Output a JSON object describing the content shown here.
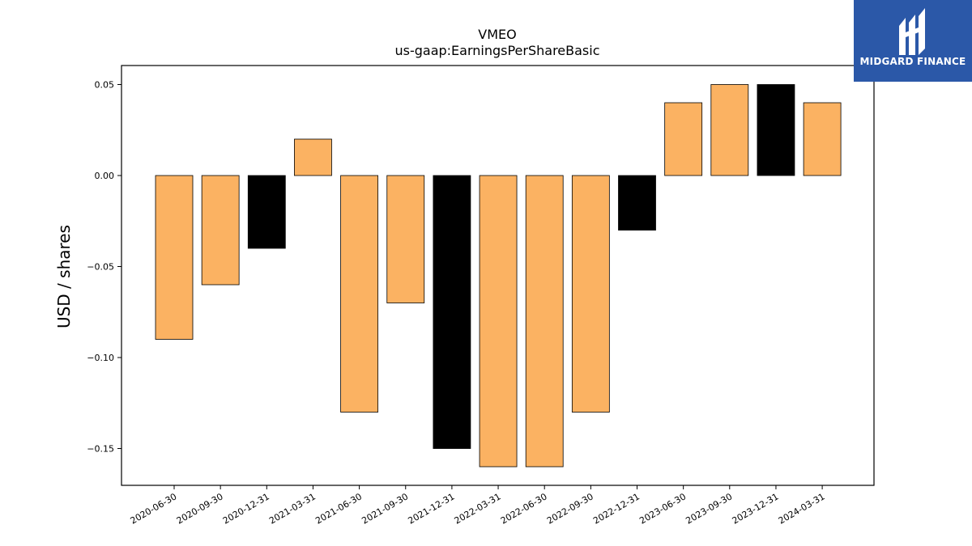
{
  "chart_data": {
    "type": "bar",
    "title": "VMEO",
    "subtitle": "us-gaap:EarningsPerShareBasic",
    "xlabel": "",
    "ylabel": "USD / shares",
    "ylim": [
      -0.17,
      0.061
    ],
    "yticks": [
      0.05,
      0.0,
      -0.05,
      -0.1,
      -0.15
    ],
    "ytick_labels": [
      "0.05",
      "0.00",
      "−0.05",
      "−0.10",
      "−0.15"
    ],
    "categories": [
      "2020-06-30",
      "2020-09-30",
      "2020-12-31",
      "2021-03-31",
      "2021-06-30",
      "2021-09-30",
      "2021-12-31",
      "2022-03-31",
      "2022-06-30",
      "2022-09-30",
      "2022-12-31",
      "2023-06-30",
      "2023-09-30",
      "2023-12-31",
      "2024-03-31"
    ],
    "values": [
      -0.09,
      -0.06,
      -0.04,
      0.02,
      -0.13,
      -0.07,
      -0.15,
      -0.16,
      -0.16,
      -0.13,
      -0.03,
      0.04,
      0.05,
      0.05,
      0.04
    ],
    "bar_colors": [
      "#fbb262",
      "#fbb262",
      "#000000",
      "#fbb262",
      "#fbb262",
      "#fbb262",
      "#000000",
      "#fbb262",
      "#fbb262",
      "#fbb262",
      "#000000",
      "#fbb262",
      "#fbb262",
      "#000000",
      "#fbb262"
    ],
    "grid": false,
    "legend": "none"
  },
  "logo": {
    "text": "MIDGARD FINANCE",
    "background": "#2b58a8"
  }
}
